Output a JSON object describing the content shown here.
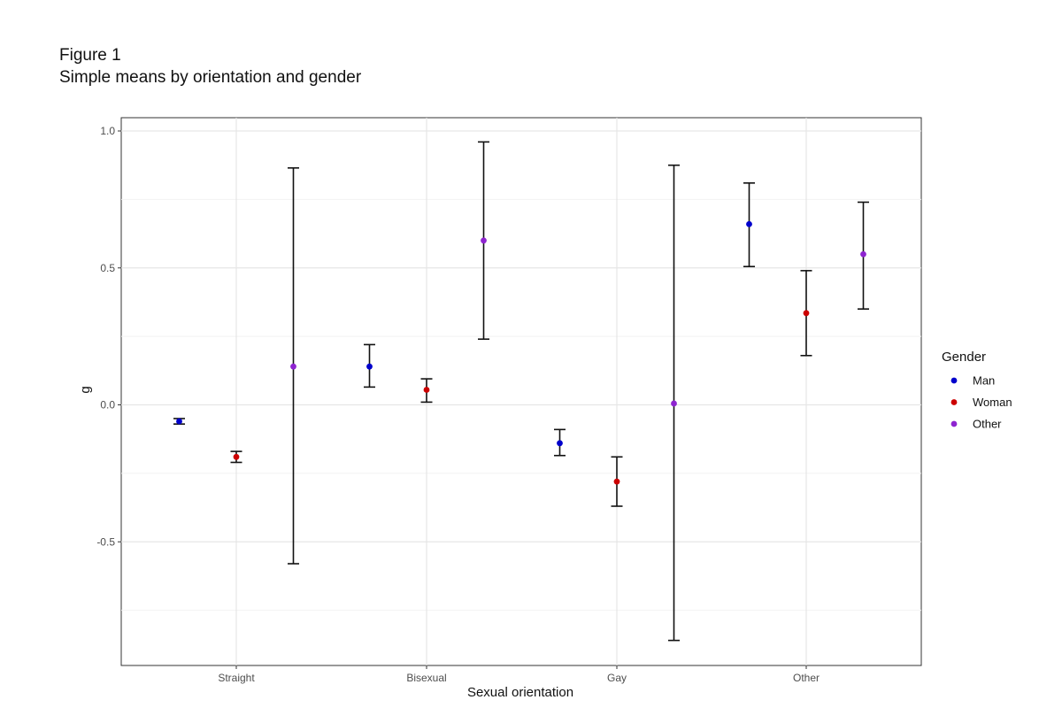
{
  "figure": {
    "number": "Figure 1",
    "caption": "Simple means by orientation and gender"
  },
  "chart_data": {
    "type": "scatter",
    "subtype": "point-with-errorbars",
    "xlabel": "Sexual orientation",
    "ylabel": "g",
    "categories": [
      "Straight",
      "Bisexual",
      "Gay",
      "Other"
    ],
    "ylim": [
      -0.94,
      1.05
    ],
    "yticks": [
      {
        "value": 1.0,
        "label": "1.0"
      },
      {
        "value": 0.5,
        "label": "0.5"
      },
      {
        "value": 0.0,
        "label": "0.0"
      },
      {
        "value": -0.5,
        "label": "-0.5"
      }
    ],
    "grid": true,
    "legend": {
      "title": "Gender",
      "position": "right"
    },
    "series": [
      {
        "name": "Man",
        "color": "#0000cc",
        "mean": [
          -0.06,
          0.14,
          -0.14,
          0.66
        ],
        "lower": [
          -0.07,
          0.065,
          -0.185,
          0.505
        ],
        "upper": [
          -0.05,
          0.22,
          -0.09,
          0.81
        ]
      },
      {
        "name": "Woman",
        "color": "#cc0000",
        "mean": [
          -0.19,
          0.055,
          -0.28,
          0.335
        ],
        "lower": [
          -0.21,
          0.01,
          -0.37,
          0.18
        ],
        "upper": [
          -0.17,
          0.095,
          -0.19,
          0.49
        ]
      },
      {
        "name": "Other",
        "color": "#8e24d0",
        "mean": [
          0.14,
          0.6,
          0.005,
          0.55
        ],
        "lower": [
          -0.58,
          0.24,
          -0.86,
          0.35
        ],
        "upper": [
          0.865,
          0.96,
          0.875,
          0.74
        ]
      }
    ]
  }
}
